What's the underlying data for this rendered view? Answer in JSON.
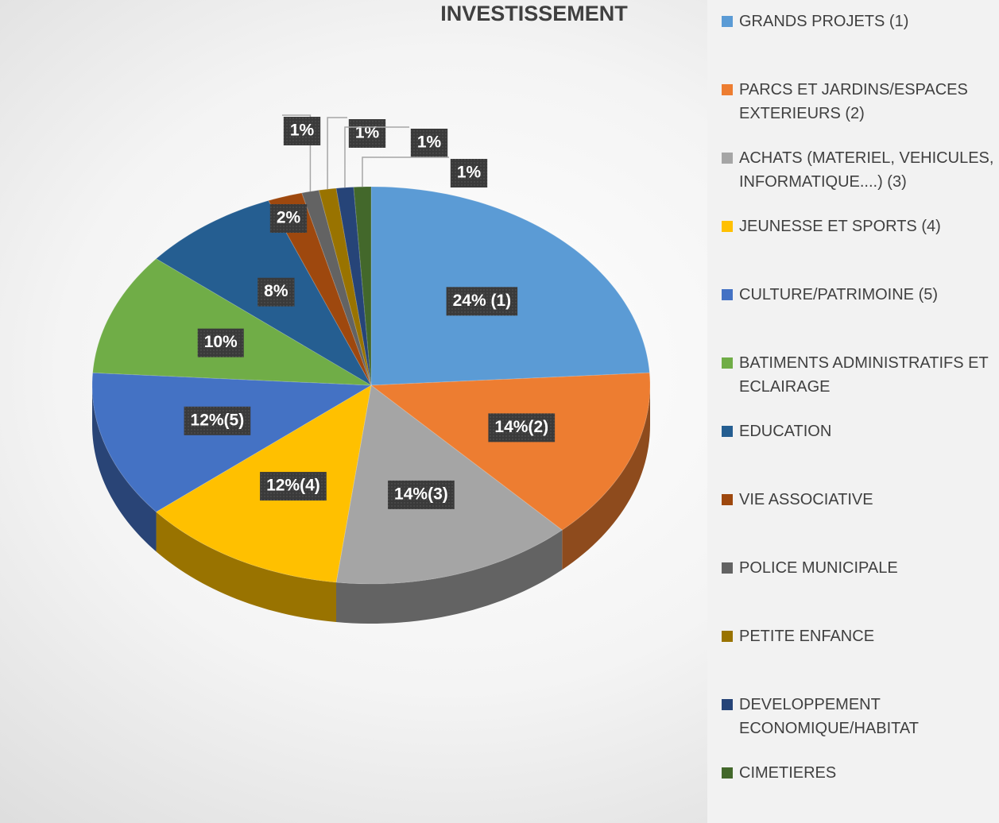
{
  "chart_data": {
    "type": "pie",
    "title": "INVESTISSEMENT",
    "categories": [
      "GRANDS PROJETS (1)",
      "PARCS ET JARDINS/ESPACES EXTERIEURS (2)",
      "ACHATS (MATERIEL, VEHICULES, INFORMATIQUE....) (3)",
      "JEUNESSE ET SPORTS (4)",
      "CULTURE/PATRIMOINE (5)",
      "BATIMENTS ADMINISTRATIFS ET ECLAIRAGE",
      "EDUCATION",
      "VIE ASSOCIATIVE",
      "POLICE MUNICIPALE",
      "PETITE ENFANCE",
      "DEVELOPPEMENT ECONOMIQUE/HABITAT",
      "CIMETIERES"
    ],
    "values": [
      24,
      14,
      14,
      12,
      12,
      10,
      8,
      2,
      1,
      1,
      1,
      1
    ],
    "value_labels": [
      "24% (1)",
      "14%(2)",
      "14%(3)",
      "12%(4)",
      "12%(5)",
      "10%",
      "8%",
      "2%",
      "1%",
      "1%",
      "1%",
      "1%"
    ],
    "colors": [
      "#5b9bd5",
      "#ed7d31",
      "#a5a5a5",
      "#ffc000",
      "#4472c4",
      "#70ad47",
      "#255e91",
      "#9e480e",
      "#636363",
      "#997300",
      "#264478",
      "#43682b"
    ],
    "legend": "right"
  }
}
